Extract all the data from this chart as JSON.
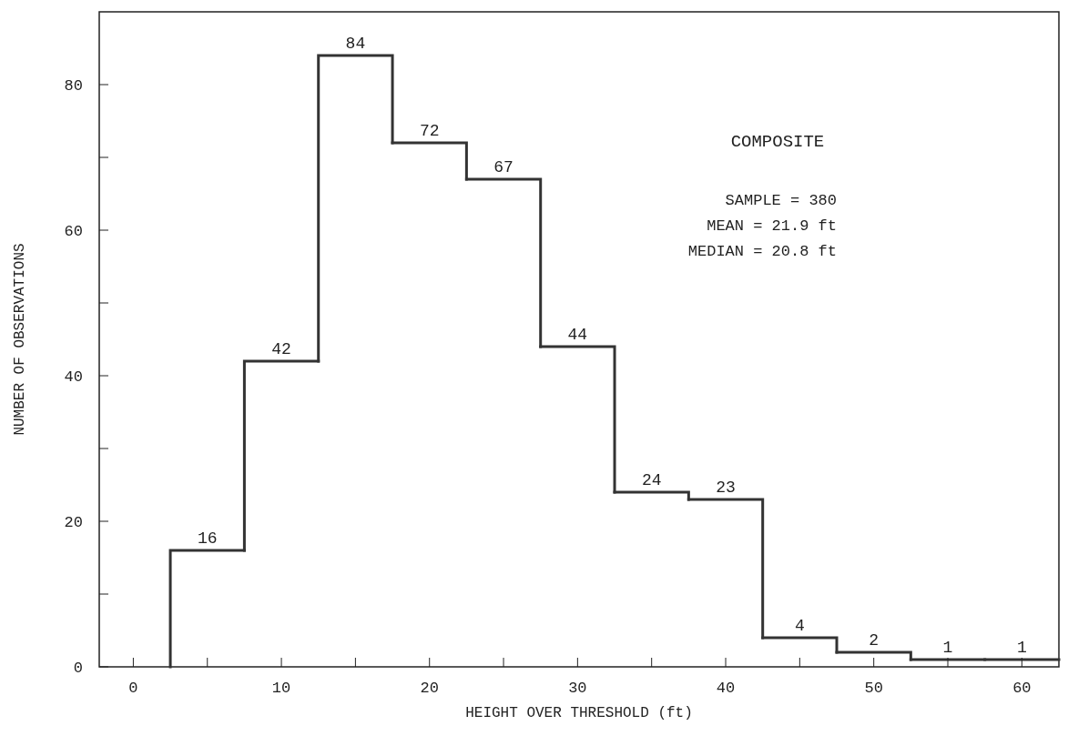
{
  "chart_data": {
    "type": "histogram",
    "xlabel": "HEIGHT OVER THRESHOLD (ft)",
    "ylabel": "NUMBER OF OBSERVATIONS",
    "bins": [
      2.5,
      7.5,
      12.5,
      17.5,
      22.5,
      27.5,
      32.5,
      37.5,
      42.5,
      47.5,
      52.5,
      57.5,
      62.5
    ],
    "values": [
      16,
      42,
      84,
      72,
      67,
      44,
      24,
      23,
      4,
      2,
      1,
      1
    ],
    "color": "#333333",
    "data_labels": true,
    "xlim": [
      -2.3,
      62.5
    ],
    "xticks": [
      0,
      {
        "value": 5,
        "label": null
      },
      10,
      {
        "value": 15,
        "label": null
      },
      20,
      {
        "value": 25,
        "label": null
      },
      30,
      {
        "value": 35,
        "label": null
      },
      40,
      {
        "value": 45,
        "label": null
      },
      50,
      {
        "value": 55,
        "label": null
      },
      60
    ],
    "ylim": [
      0,
      90
    ],
    "yticks": [
      0,
      {
        "value": 10,
        "label": null
      },
      20,
      {
        "value": 30,
        "label": null
      },
      40,
      {
        "value": 50,
        "label": null
      },
      60,
      {
        "value": 70,
        "label": null
      },
      80
    ],
    "annotations": [
      "COMPOSITE",
      "SAMPLE = 380",
      "MEAN = 21.9 ft",
      "MEDIAN = 20.8 ft"
    ]
  }
}
